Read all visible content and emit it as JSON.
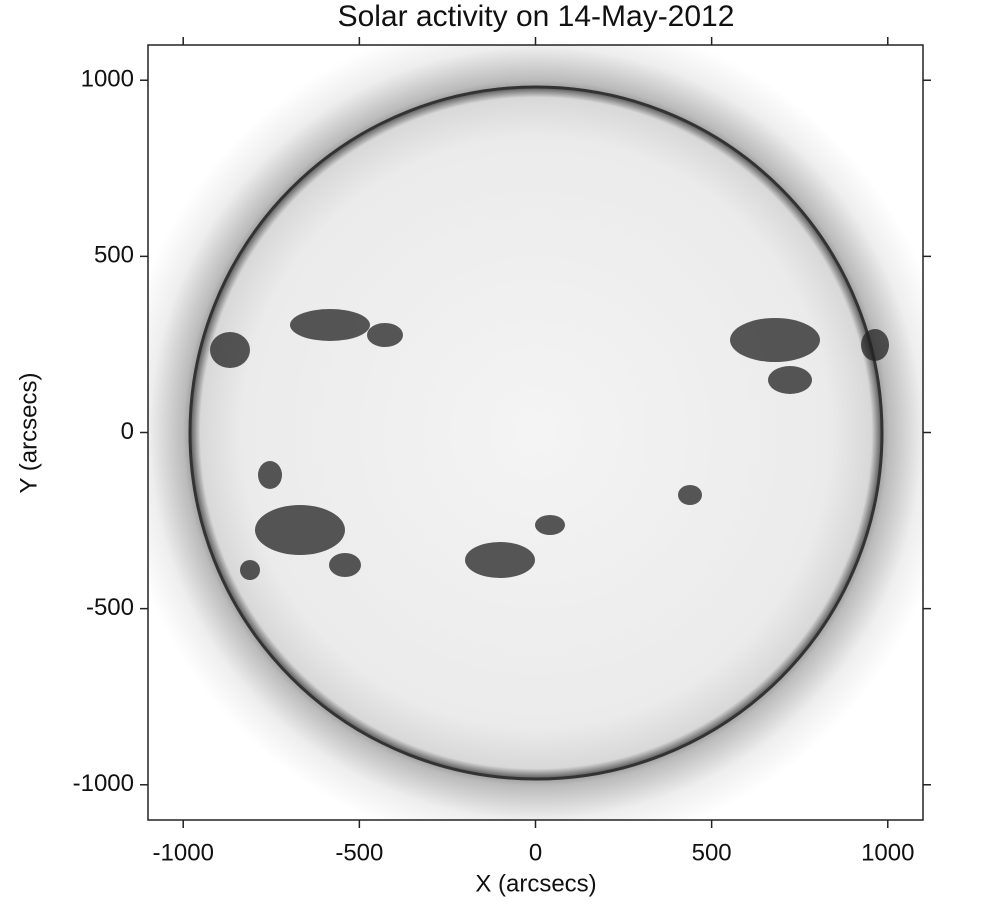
{
  "chart_data": {
    "type": "image",
    "title": "Solar activity on 14-May-2012",
    "x_label": "X (arcsecs)",
    "y_label": "Y (arcsecs)",
    "xlim": [
      -1100,
      1100
    ],
    "ylim": [
      -1100,
      1100
    ],
    "xticks": [
      -1000,
      -500,
      0,
      500,
      1000
    ],
    "yticks": [
      -1000,
      -500,
      0,
      500,
      1000
    ]
  }
}
